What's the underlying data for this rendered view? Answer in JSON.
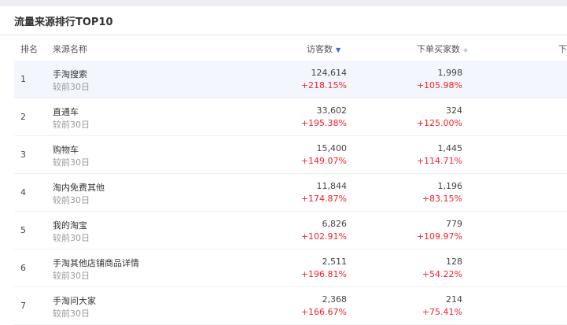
{
  "title": "流量来源排行TOP10",
  "headers": {
    "rank": "排名",
    "source": "来源名称",
    "visitors": "访客数",
    "buyers": "下单买家数",
    "third_partial": "下"
  },
  "sort_icons": {
    "visitors": "sort-desc-active",
    "buyers": "sort-inactive"
  },
  "colors": {
    "up": "#f5222d",
    "active_sort": "#3a6fd8",
    "row_highlight": "#f3f7fd"
  },
  "rows": [
    {
      "rank": "1",
      "name": "手淘搜索",
      "sub": "较前30日",
      "visitors": "124,614",
      "visitors_change": "+218.15%",
      "buyers": "1,998",
      "buyers_change": "+105.98%"
    },
    {
      "rank": "2",
      "name": "直通车",
      "sub": "较前30日",
      "visitors": "33,602",
      "visitors_change": "+195.38%",
      "buyers": "324",
      "buyers_change": "+125.00%"
    },
    {
      "rank": "3",
      "name": "购物车",
      "sub": "较前30日",
      "visitors": "15,400",
      "visitors_change": "+149.07%",
      "buyers": "1,445",
      "buyers_change": "+114.71%"
    },
    {
      "rank": "4",
      "name": "淘内免费其他",
      "sub": "较前30日",
      "visitors": "11,844",
      "visitors_change": "+174.87%",
      "buyers": "1,196",
      "buyers_change": "+83.15%"
    },
    {
      "rank": "5",
      "name": "我的淘宝",
      "sub": "较前30日",
      "visitors": "6,826",
      "visitors_change": "+102.91%",
      "buyers": "779",
      "buyers_change": "+109.97%"
    },
    {
      "rank": "6",
      "name": "手淘其他店铺商品详情",
      "sub": "较前30日",
      "visitors": "2,511",
      "visitors_change": "+196.81%",
      "buyers": "128",
      "buyers_change": "+54.22%"
    },
    {
      "rank": "7",
      "name": "手淘问大家",
      "sub": "较前30日",
      "visitors": "2,368",
      "visitors_change": "+166.67%",
      "buyers": "214",
      "buyers_change": "+75.41%"
    }
  ]
}
